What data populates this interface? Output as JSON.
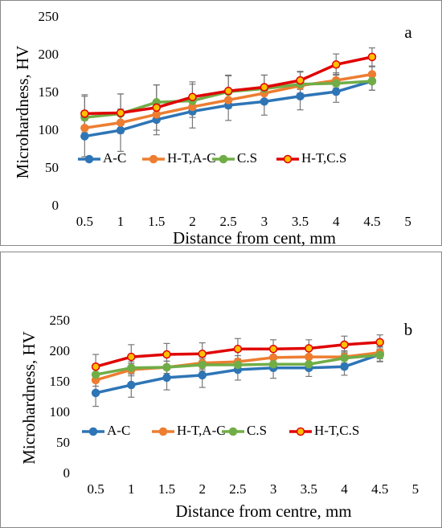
{
  "chart_data": [
    {
      "type": "line",
      "label": "a",
      "x_label": "Distance from cent, mm",
      "y_label": "Microhardness, HV",
      "categories": [
        "0.5",
        "1",
        "1.5",
        "2",
        "2.5",
        "3",
        "3.5",
        "4",
        "4.5",
        "5"
      ],
      "ylim": [
        0,
        250
      ],
      "yticks": [
        0,
        50,
        100,
        150,
        200,
        250
      ],
      "series": [
        {
          "name": "A-C",
          "color": "#2e75b6",
          "marker_fill": "#2e75b6",
          "values": [
            93,
            101,
            115,
            126,
            134,
            139,
            146,
            152,
            166,
            null
          ],
          "errors": [
            27,
            28,
            20,
            22,
            20,
            18,
            18,
            14,
            12,
            null
          ]
        },
        {
          "name": "H-T,A-C",
          "color": "#ed7d31",
          "marker_fill": "#ed7d31",
          "values": [
            104,
            111,
            122,
            132,
            141,
            150,
            160,
            167,
            175,
            null
          ],
          "errors": [
            10,
            10,
            10,
            10,
            10,
            10,
            10,
            10,
            10,
            null
          ]
        },
        {
          "name": "C.S",
          "color": "#70ad47",
          "marker_fill": "#70ad47",
          "values": [
            118,
            123,
            138,
            140,
            152,
            156,
            162,
            163,
            166,
            null
          ],
          "errors": [
            28,
            26,
            23,
            22,
            22,
            18,
            16,
            12,
            12,
            null
          ]
        },
        {
          "name": "H-T,C.S",
          "color": "#e00000",
          "marker_fill": "#ffc000",
          "values": [
            123,
            124,
            131,
            145,
            153,
            158,
            167,
            188,
            198,
            null
          ],
          "errors": [
            25,
            25,
            30,
            20,
            20,
            16,
            12,
            14,
            12,
            null
          ]
        }
      ]
    },
    {
      "type": "line",
      "label": "b",
      "x_label": "Distance from centre, mm",
      "y_label": "Microhardness, HV",
      "categories": [
        "0.5",
        "1",
        "1.5",
        "2",
        "2.5",
        "3",
        "3.5",
        "4",
        "4.5",
        "5"
      ],
      "ylim": [
        0,
        250
      ],
      "yticks": [
        0,
        50,
        100,
        150,
        200,
        250
      ],
      "series": [
        {
          "name": "A-C",
          "color": "#2e75b6",
          "marker_fill": "#2e75b6",
          "values": [
            133,
            146,
            158,
            162,
            171,
            174,
            174,
            176,
            196,
            null
          ],
          "errors": [
            22,
            20,
            20,
            20,
            17,
            17,
            14,
            14,
            12,
            null
          ]
        },
        {
          "name": "H-T,A-C",
          "color": "#ed7d31",
          "marker_fill": "#ed7d31",
          "values": [
            154,
            171,
            175,
            182,
            184,
            191,
            192,
            192,
            199,
            null
          ],
          "errors": [
            10,
            10,
            10,
            10,
            10,
            10,
            10,
            10,
            10,
            null
          ]
        },
        {
          "name": "C.S",
          "color": "#70ad47",
          "marker_fill": "#70ad47",
          "values": [
            163,
            174,
            175,
            179,
            179,
            180,
            180,
            190,
            195,
            null
          ],
          "errors": [
            10,
            10,
            10,
            10,
            10,
            10,
            10,
            10,
            10,
            null
          ]
        },
        {
          "name": "H-T,C.S",
          "color": "#e00000",
          "marker_fill": "#ffc000",
          "values": [
            176,
            192,
            196,
            197,
            205,
            205,
            206,
            212,
            216,
            null
          ],
          "errors": [
            20,
            20,
            18,
            18,
            17,
            15,
            14,
            14,
            12,
            null
          ]
        }
      ]
    }
  ]
}
